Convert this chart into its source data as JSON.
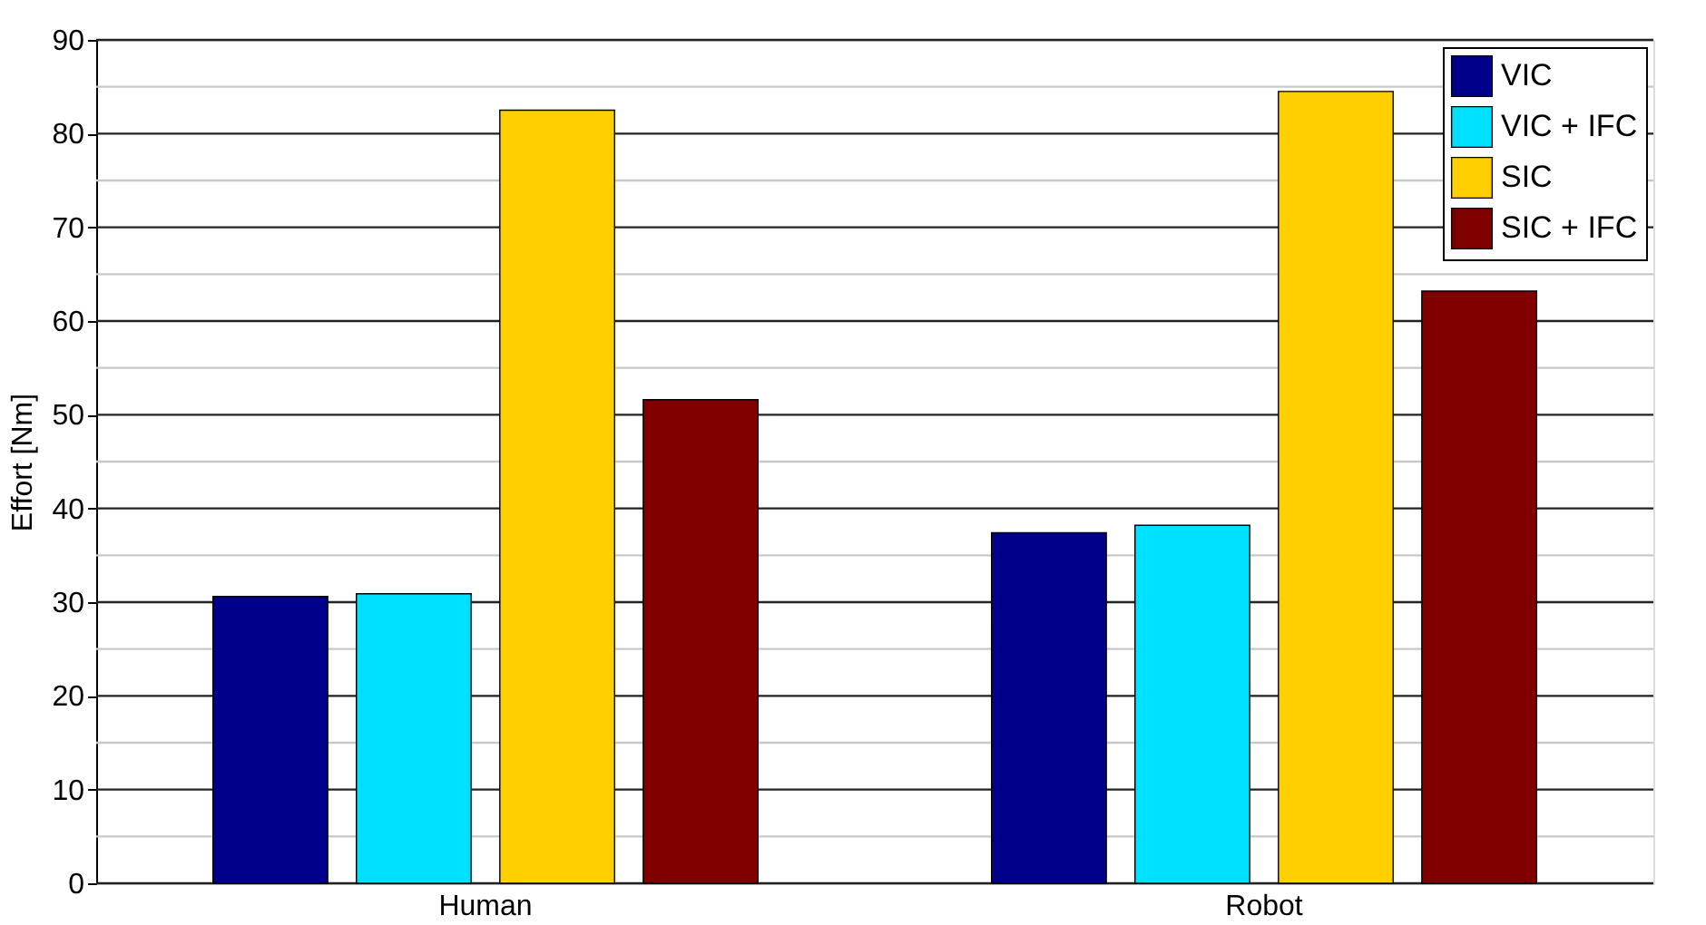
{
  "chart_data": {
    "type": "bar",
    "ylabel": "Effort [Nm]",
    "categories": [
      "Human",
      "Robot"
    ],
    "series": [
      {
        "name": "VIC",
        "color": "#00008b",
        "values": [
          30.6,
          37.4
        ]
      },
      {
        "name": "VIC + IFC",
        "color": "#00e0ff",
        "values": [
          30.9,
          38.2
        ]
      },
      {
        "name": "SIC",
        "color": "#ffcf00",
        "values": [
          82.5,
          84.5
        ]
      },
      {
        "name": "SIC + IFC",
        "color": "#800000",
        "values": [
          51.6,
          63.2
        ]
      }
    ],
    "ylim": [
      0,
      90
    ],
    "yticks": [
      0,
      {
        "value": 5,
        "label": null
      },
      10,
      {
        "value": 15,
        "label": null
      },
      20,
      {
        "value": 25,
        "label": null
      },
      30,
      {
        "value": 35,
        "label": null
      },
      40,
      {
        "value": 45,
        "label": null
      },
      50,
      {
        "value": 55,
        "label": null
      },
      60,
      {
        "value": 65,
        "label": null
      },
      70,
      {
        "value": 75,
        "label": null
      },
      80,
      {
        "value": 85,
        "label": null
      },
      90
    ],
    "grid": "y",
    "legend": "top right"
  }
}
